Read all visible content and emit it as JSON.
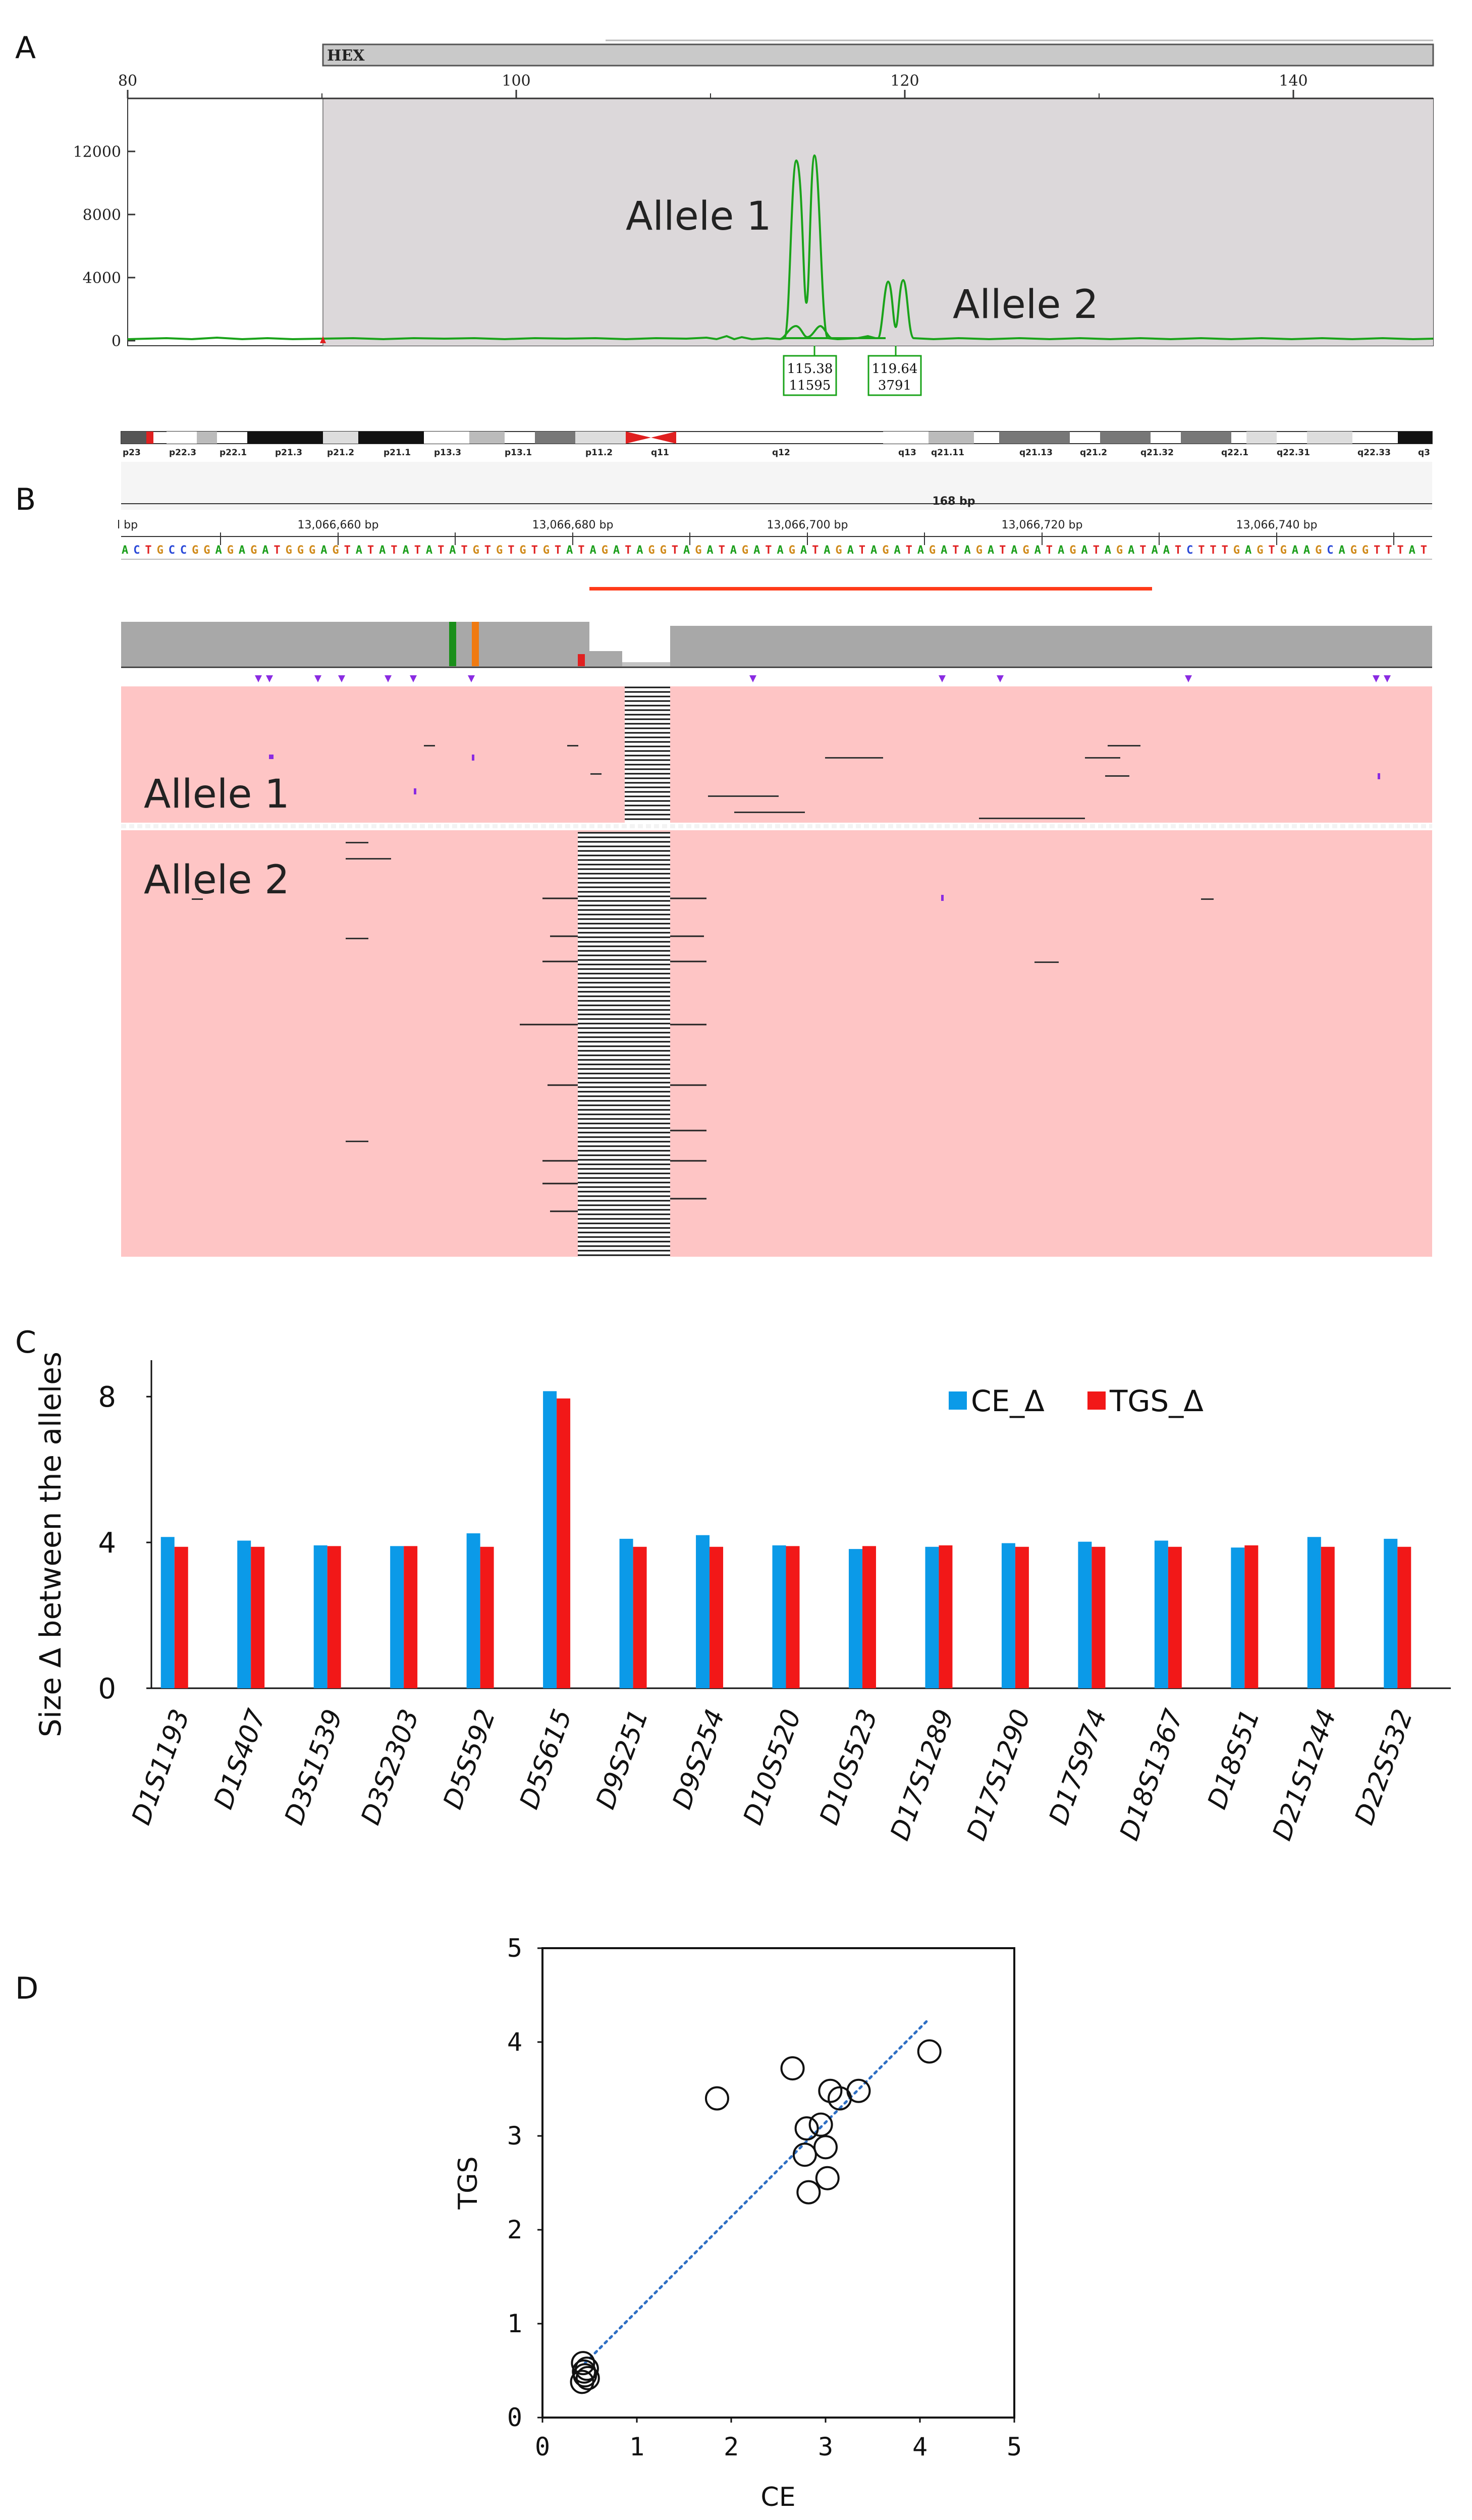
{
  "panel_labels": {
    "a": "A",
    "b": "B",
    "c": "C",
    "d": "D"
  },
  "panel_a": {
    "dye_label": "HEX",
    "x_ticks": [
      "80",
      "100",
      "120",
      "140"
    ],
    "y_ticks": [
      "0",
      "4000",
      "8000",
      "12000"
    ],
    "allele1_label": "Allele 1",
    "allele2_label": "Allele 2",
    "peak1_size": "115.38",
    "peak1_height": "11595",
    "peak2_size": "119.64",
    "peak2_height": "3791",
    "colors": {
      "trace": "#1aa31a",
      "shade": "#dcd8da",
      "box": "#1aa31a"
    }
  },
  "panel_b": {
    "cytobands": [
      "p23",
      "p22.3",
      "p22.1",
      "p21.3",
      "p21.2",
      "p21.1",
      "p13.3",
      "p13.1",
      "p11.2",
      "q11",
      "q12",
      "q13",
      "q21.11",
      "q21.13",
      "q21.2",
      "q21.32",
      "q22.1",
      "q22.31",
      "q22.33",
      "q3"
    ],
    "span_label": "168 bp",
    "coord_ticks": [
      "l bp",
      "13,066,660 bp",
      "13,066,680 bp",
      "13,066,700 bp",
      "13,066,720 bp",
      "13,066,740 bp"
    ],
    "sequence": "ACTGCCGGAGAGATGGGAGTATATATATATGTGTGTGTATAGATAGGTAGATAGATAGATAGATAGATAGATAGATAGATAGATAGATAATCTTTGAGTGAAGCAGGTTTAT",
    "allele1_label": "Allele 1",
    "allele2_label": "Allele 2",
    "colors": {
      "reads_bg": "#fec5c5",
      "coverage": "#a8a8a8",
      "repeat_bar": "#ff3b1a",
      "insertion": "#8a2be2"
    }
  },
  "chart_data": [
    {
      "type": "bar",
      "title": "",
      "xlabel": "",
      "ylabel": "Size Δ between the alleles",
      "ylim": [
        0,
        9
      ],
      "yticks": [
        "0",
        "4",
        "8"
      ],
      "categories": [
        "D1S1193",
        "D1S407",
        "D3S1539",
        "D3S2303",
        "D5S592",
        "D5S615",
        "D9S251",
        "D9S254",
        "D10S520",
        "D10S523",
        "D17S1289",
        "D17S1290",
        "D17S974",
        "D18S1367",
        "D18S51",
        "D21S1244",
        "D22S532"
      ],
      "series": [
        {
          "name": "CE_Δ",
          "color": "#0b9ae8",
          "values": [
            4.15,
            4.05,
            3.92,
            3.9,
            4.25,
            8.15,
            4.1,
            4.2,
            3.92,
            3.82,
            3.88,
            3.98,
            4.02,
            4.05,
            3.86,
            4.15,
            4.1
          ]
        },
        {
          "name": "TGS_Δ",
          "color": "#f21818",
          "values": [
            3.88,
            3.88,
            3.9,
            3.9,
            3.88,
            7.95,
            3.88,
            3.88,
            3.9,
            3.9,
            3.92,
            3.88,
            3.88,
            3.88,
            3.92,
            3.88,
            3.88
          ]
        }
      ],
      "legend": "top-right"
    },
    {
      "type": "scatter",
      "title": "",
      "xlabel": "CE",
      "ylabel": "TGS",
      "xlim": [
        0,
        5
      ],
      "ylim": [
        0,
        5
      ],
      "xticks": [
        "0",
        "1",
        "2",
        "3",
        "4",
        "5"
      ],
      "yticks": [
        "0",
        "1",
        "2",
        "3",
        "4",
        "5"
      ],
      "points": [
        {
          "x": 0.42,
          "y": 0.38
        },
        {
          "x": 0.45,
          "y": 0.45
        },
        {
          "x": 0.47,
          "y": 0.52
        },
        {
          "x": 0.43,
          "y": 0.58
        },
        {
          "x": 0.48,
          "y": 0.42
        },
        {
          "x": 0.44,
          "y": 0.49
        },
        {
          "x": 1.85,
          "y": 3.4
        },
        {
          "x": 2.65,
          "y": 3.72
        },
        {
          "x": 3.05,
          "y": 3.48
        },
        {
          "x": 3.35,
          "y": 3.48
        },
        {
          "x": 3.15,
          "y": 3.4
        },
        {
          "x": 2.8,
          "y": 3.08
        },
        {
          "x": 2.95,
          "y": 3.12
        },
        {
          "x": 2.78,
          "y": 2.8
        },
        {
          "x": 3.0,
          "y": 2.88
        },
        {
          "x": 2.82,
          "y": 2.4
        },
        {
          "x": 3.02,
          "y": 2.55
        },
        {
          "x": 4.1,
          "y": 3.9
        }
      ],
      "trendline": {
        "x": [
          0.45,
          4.1
        ],
        "y": [
          0.58,
          4.25
        ],
        "style": "dotted",
        "color": "#2e6fc4"
      }
    }
  ]
}
